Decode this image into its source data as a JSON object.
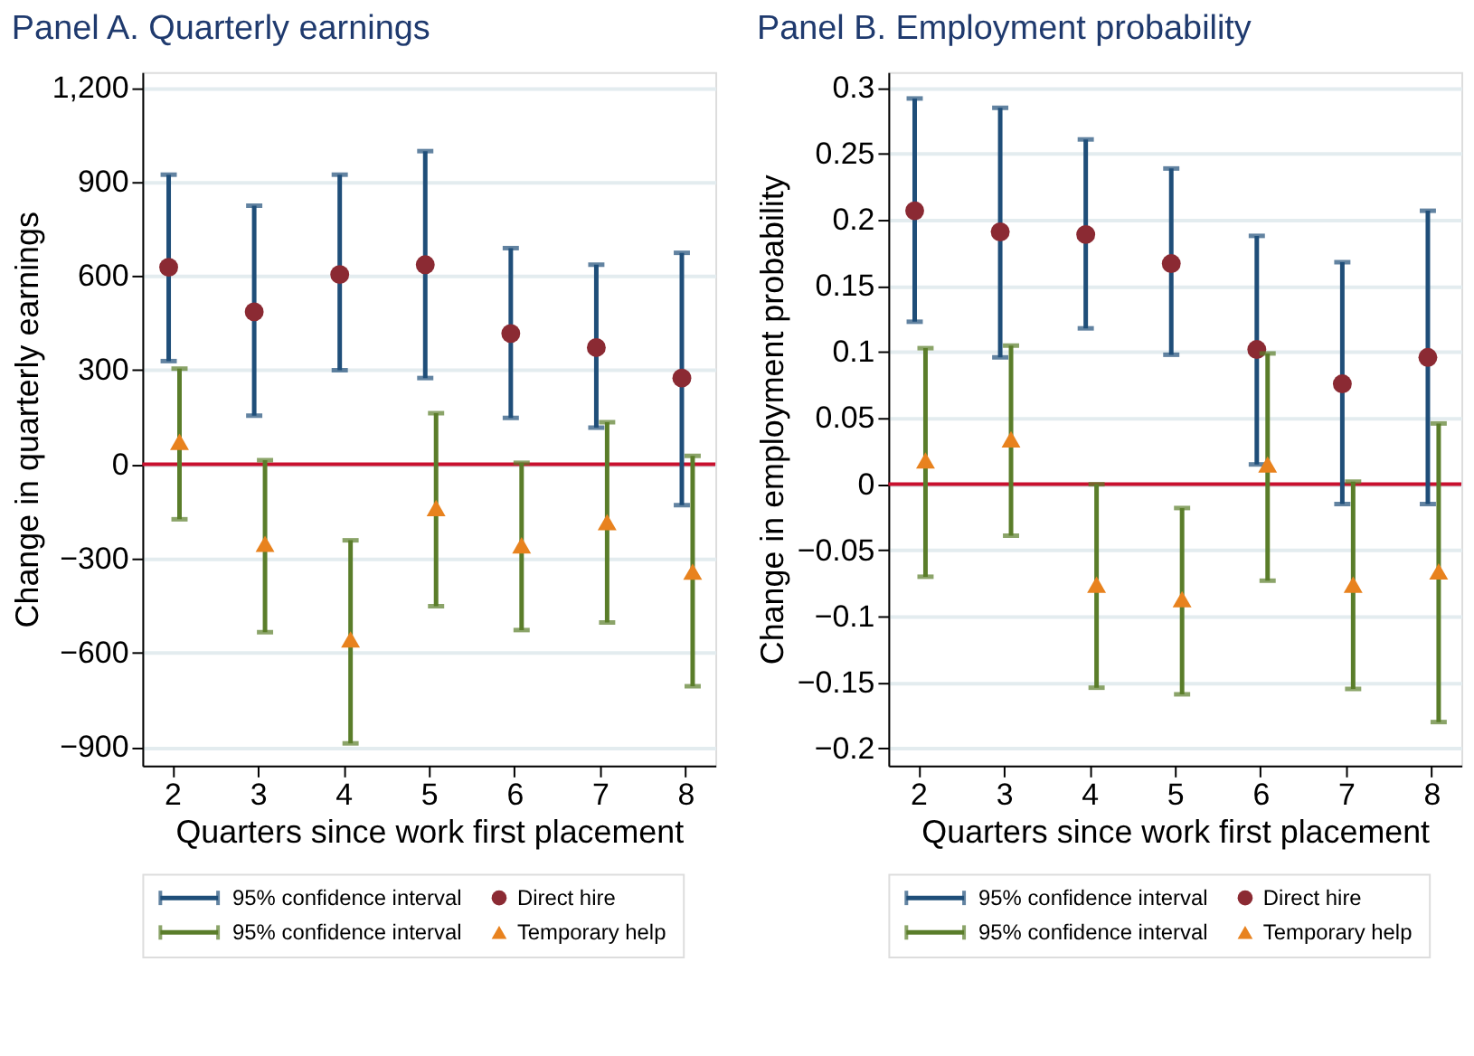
{
  "chart_data": [
    {
      "type": "scatter",
      "title": "Panel A. Quarterly earnings",
      "xlabel": "Quarters since work first placement",
      "ylabel": "Change in quarterly earnings",
      "categories": [
        "2",
        "3",
        "4",
        "5",
        "6",
        "7",
        "8"
      ],
      "ylim": [
        -960,
        1250
      ],
      "yticks": [
        -900,
        -600,
        -300,
        0,
        300,
        600,
        900,
        {
          "value": 1200,
          "label": "1,200"
        }
      ],
      "grid": "y",
      "legend": "bottom",
      "annotations": [
        "95% confidence interval",
        "95% confidence interval"
      ],
      "ref_lines": [
        {
          "axis": "y",
          "value": 0,
          "color": "#c8102e"
        }
      ],
      "series": [
        {
          "name": "Direct hire",
          "marker": "circle",
          "color": "#8b2a33",
          "values": [
            628,
            486,
            605,
            636,
            417,
            372,
            275
          ],
          "errors": [
            [
              329,
              923
            ],
            [
              155,
              824
            ],
            [
              300,
              923
            ],
            [
              275,
              998
            ],
            [
              148,
              689
            ],
            [
              117,
              636
            ],
            [
              -130,
              674
            ]
          ]
        },
        {
          "name": "Temporary help",
          "marker": "triangle",
          "color": "#e8821e",
          "values": [
            72,
            -253,
            -558,
            -139,
            -258,
            -184,
            -342
          ],
          "errors": [
            [
              -175,
              305
            ],
            [
              -535,
              13
            ],
            [
              -889,
              -242
            ],
            [
              -452,
              163
            ],
            [
              -528,
              5
            ],
            [
              -504,
              134
            ],
            [
              -707,
              27
            ]
          ]
        }
      ]
    },
    {
      "type": "scatter",
      "title": "Panel B. Employment probability",
      "xlabel": "Quarters since work first placement",
      "ylabel": "Change in employment probability",
      "categories": [
        "2",
        "3",
        "4",
        "5",
        "6",
        "7",
        "8"
      ],
      "ylim": [
        -0.213,
        0.312
      ],
      "yticks": [
        -0.2,
        -0.15,
        -0.1,
        -0.05,
        0,
        0.05,
        0.1,
        0.15,
        0.2,
        0.25,
        0.3
      ],
      "grid": "y",
      "legend": "bottom",
      "annotations": [
        "95% confidence interval",
        "95% confidence interval"
      ],
      "ref_lines": [
        {
          "axis": "y",
          "value": 0,
          "color": "#c8102e"
        }
      ],
      "series": [
        {
          "name": "Direct hire",
          "marker": "circle",
          "color": "#8b2a33",
          "values": [
            0.207,
            0.191,
            0.189,
            0.167,
            0.102,
            0.076,
            0.096
          ],
          "errors": [
            [
              0.123,
              0.292
            ],
            [
              0.096,
              0.285
            ],
            [
              0.118,
              0.261
            ],
            [
              0.098,
              0.239
            ],
            [
              0.015,
              0.188
            ],
            [
              -0.015,
              0.168
            ],
            [
              -0.015,
              0.207
            ]
          ]
        },
        {
          "name": "Temporary help",
          "marker": "triangle",
          "color": "#e8821e",
          "values": [
            0.018,
            0.034,
            -0.076,
            -0.087,
            0.015,
            -0.076,
            -0.066
          ],
          "errors": [
            [
              -0.07,
              0.103
            ],
            [
              -0.039,
              0.105
            ],
            [
              -0.154,
              0
            ],
            [
              -0.159,
              -0.018
            ],
            [
              -0.073,
              0.099
            ],
            [
              -0.155,
              0.002
            ],
            [
              -0.18,
              0.046
            ]
          ]
        }
      ]
    }
  ]
}
